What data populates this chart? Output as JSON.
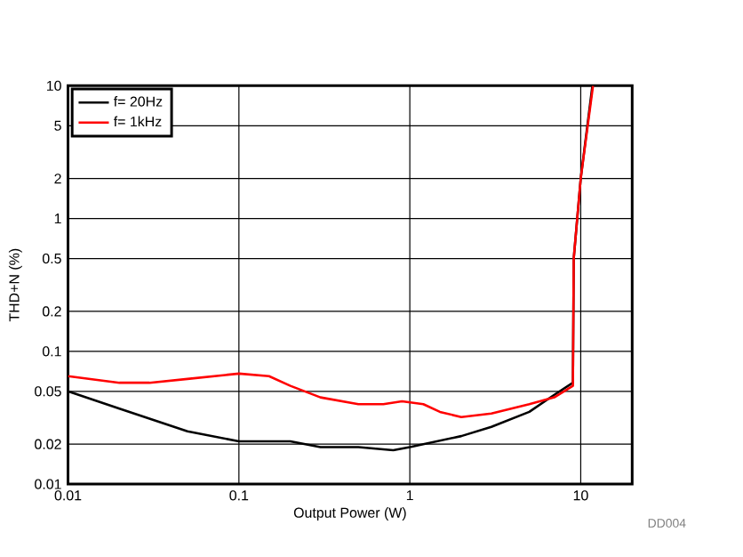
{
  "chart_data": {
    "type": "line",
    "xlabel": "Output Power (W)",
    "ylabel": "THD+N (%)",
    "log": "xy",
    "grid": true,
    "legend": "top left",
    "xlim": [
      0.01,
      20
    ],
    "ylim": [
      0.01,
      10
    ],
    "xticks": [
      0.01,
      0.1,
      1,
      10
    ],
    "yticks": [
      0.01,
      0.02,
      0.05,
      0.1,
      0.2,
      0.5,
      1,
      2,
      5,
      10
    ],
    "annotations": [
      "DD004"
    ],
    "series": [
      {
        "name": "f= 20Hz",
        "color": "#000000",
        "x": [
          0.01,
          0.02,
          0.05,
          0.1,
          0.2,
          0.3,
          0.5,
          0.8,
          1,
          2,
          3,
          5,
          7,
          9,
          9.1,
          10,
          11.7
        ],
        "values": [
          0.05,
          0.037,
          0.025,
          0.021,
          0.021,
          0.019,
          0.019,
          0.018,
          0.019,
          0.023,
          0.027,
          0.035,
          0.047,
          0.058,
          0.5,
          2,
          10
        ]
      },
      {
        "name": "f= 1kHz",
        "color": "#ff0000",
        "x": [
          0.01,
          0.02,
          0.03,
          0.05,
          0.1,
          0.15,
          0.2,
          0.3,
          0.5,
          0.7,
          0.9,
          1.2,
          1.5,
          2,
          3,
          5,
          7,
          9,
          9.1,
          10,
          11.8
        ],
        "values": [
          0.065,
          0.058,
          0.058,
          0.062,
          0.068,
          0.065,
          0.055,
          0.045,
          0.04,
          0.04,
          0.042,
          0.04,
          0.035,
          0.032,
          0.034,
          0.04,
          0.045,
          0.055,
          0.5,
          2,
          10
        ]
      }
    ]
  }
}
